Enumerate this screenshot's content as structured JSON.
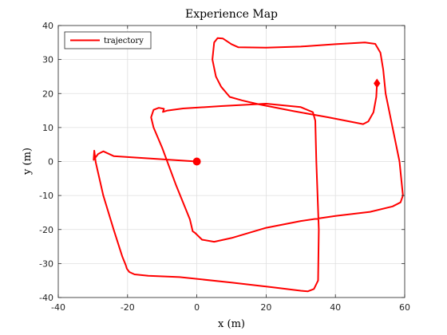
{
  "chart_data": {
    "type": "line",
    "title": "Experience Map",
    "xlabel": "x (m)",
    "ylabel": "y (m)",
    "xlim": [
      -40,
      60
    ],
    "ylim": [
      -40,
      40
    ],
    "xticks": [
      -40,
      -20,
      0,
      20,
      40,
      60
    ],
    "yticks": [
      -40,
      -30,
      -20,
      -10,
      0,
      10,
      20,
      30,
      40
    ],
    "xtick_labels": [
      "-40",
      "-20",
      "0",
      "20",
      "40",
      "60"
    ],
    "ytick_labels": [
      "-40",
      "-30",
      "-20",
      "-10",
      "0",
      "10",
      "20",
      "30",
      "40"
    ],
    "grid": true,
    "legend": {
      "location": "top-left",
      "entries": [
        "trajectory"
      ]
    },
    "colors": {
      "series": "#ff0000",
      "axes": "#262626",
      "grid": "#dfdfdf"
    },
    "series": [
      {
        "name": "trajectory",
        "points": [
          [
            0,
            0
          ],
          [
            -12,
            0.8
          ],
          [
            -24,
            1.6
          ],
          [
            -27,
            3
          ],
          [
            -28.5,
            2.2
          ],
          [
            -29.8,
            0.5
          ],
          [
            -29.6,
            3.2
          ],
          [
            -29.2,
            -0.2
          ],
          [
            -27,
            -10
          ],
          [
            -24,
            -20
          ],
          [
            -21.5,
            -28
          ],
          [
            -20.5,
            -30.5
          ],
          [
            -20.2,
            -31.5
          ],
          [
            -19.5,
            -32.5
          ],
          [
            -18,
            -33.2
          ],
          [
            -14,
            -33.6
          ],
          [
            -5,
            -34
          ],
          [
            10,
            -35.6
          ],
          [
            22,
            -37
          ],
          [
            30,
            -38
          ],
          [
            32,
            -38.2
          ],
          [
            33.8,
            -37.5
          ],
          [
            35,
            -35
          ],
          [
            35.2,
            -20
          ],
          [
            34.5,
            0
          ],
          [
            34.2,
            12
          ],
          [
            33.5,
            14.5
          ],
          [
            30,
            16
          ],
          [
            20,
            17
          ],
          [
            7,
            16.3
          ],
          [
            -4,
            15.6
          ],
          [
            -8.5,
            15
          ],
          [
            -9.8,
            14.6
          ],
          [
            -9.5,
            15.5
          ],
          [
            -11,
            15.8
          ],
          [
            -12.5,
            15.2
          ],
          [
            -13.2,
            13
          ],
          [
            -12.5,
            10
          ],
          [
            -10,
            4
          ],
          [
            -6,
            -7
          ],
          [
            -2,
            -17
          ],
          [
            -1.2,
            -20.5
          ],
          [
            -0.5,
            -21
          ],
          [
            1.5,
            -23
          ],
          [
            5,
            -23.6
          ],
          [
            10,
            -22.5
          ],
          [
            20,
            -19.5
          ],
          [
            30,
            -17.5
          ],
          [
            40,
            -16
          ],
          [
            50,
            -14.8
          ],
          [
            56.5,
            -13.2
          ],
          [
            58.8,
            -12
          ],
          [
            59.5,
            -10
          ],
          [
            58.5,
            0
          ],
          [
            56.5,
            10
          ],
          [
            54.5,
            20
          ],
          [
            53.8,
            27
          ],
          [
            53,
            32
          ],
          [
            51.5,
            34.6
          ],
          [
            48.5,
            35
          ],
          [
            40,
            34.5
          ],
          [
            30,
            33.8
          ],
          [
            20,
            33.5
          ],
          [
            12,
            33.6
          ],
          [
            10,
            34.5
          ],
          [
            7.5,
            36.2
          ],
          [
            6,
            36.3
          ],
          [
            5,
            35
          ],
          [
            4.5,
            30
          ],
          [
            5.5,
            25
          ],
          [
            7,
            22
          ],
          [
            9.5,
            19
          ],
          [
            13,
            18
          ],
          [
            18,
            16.8
          ],
          [
            28,
            14.8
          ],
          [
            38,
            13
          ],
          [
            48,
            11
          ],
          [
            49.5,
            11.8
          ],
          [
            51,
            14.5
          ],
          [
            51.8,
            19
          ],
          [
            52,
            23
          ]
        ],
        "start": [
          0,
          0
        ],
        "end": [
          52,
          23
        ]
      }
    ]
  }
}
